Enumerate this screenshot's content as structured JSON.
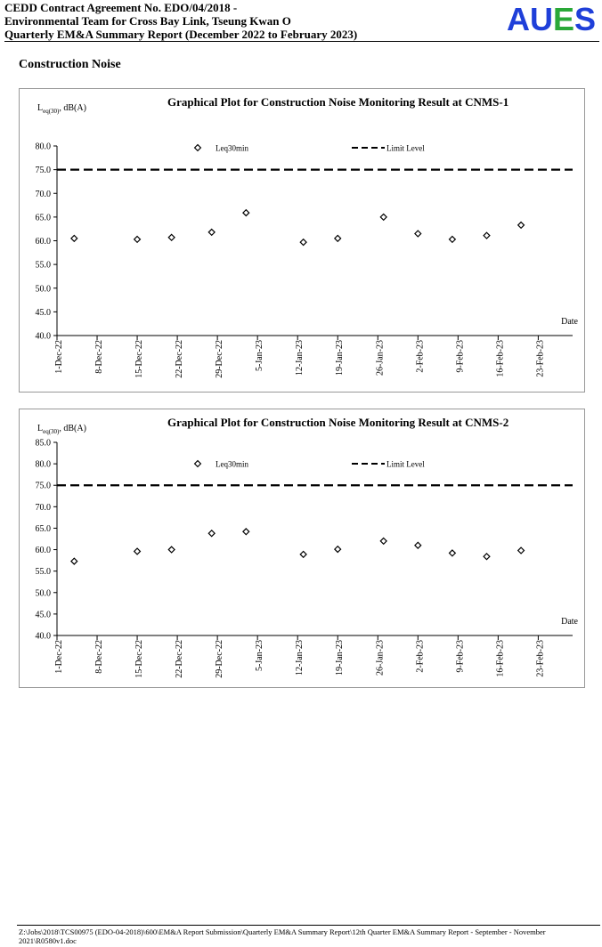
{
  "header": {
    "lines": [
      "CEDD Contract Agreement No. EDO/04/2018 -",
      "Environmental Team for Cross Bay Link, Tseung Kwan O",
      "Quarterly EM&A Summary Report (December 2022 to February 2023)"
    ],
    "logo_letters": [
      "A",
      "U",
      "E",
      "S"
    ],
    "logo_colors": [
      "#1f3fd9",
      "#1f3fd9",
      "#2aa838",
      "#1f3fd9"
    ]
  },
  "section_title": "Construction Noise",
  "chart_data": [
    {
      "type": "scatter",
      "title": "Graphical Plot for Construction Noise Monitoring Result at CNMS-1",
      "ylabel_main": "L",
      "ylabel_sub": "eq(30)",
      "ylabel_rest": ", dB(A)",
      "xlabel": "Date",
      "ylim": [
        40,
        80
      ],
      "yticks": [
        "40.0",
        "45.0",
        "50.0",
        "55.0",
        "60.0",
        "65.0",
        "70.0",
        "75.0",
        "80.0"
      ],
      "xticks": [
        "1-Dec-22",
        "8-Dec-22",
        "15-Dec-22",
        "22-Dec-22",
        "29-Dec-22",
        "5-Jan-23",
        "12-Jan-23",
        "19-Jan-23",
        "26-Jan-23",
        "2-Feb-23",
        "9-Feb-23",
        "16-Feb-23",
        "23-Feb-23"
      ],
      "xrange_days": [
        0,
        90
      ],
      "series": [
        {
          "name": "Leq30min",
          "marker": "diamond",
          "x": [
            "2022-12-04",
            "2022-12-15",
            "2022-12-21",
            "2022-12-28",
            "2023-01-03",
            "2023-01-13",
            "2023-01-19",
            "2023-01-27",
            "2023-02-02",
            "2023-02-08",
            "2023-02-14",
            "2023-02-20"
          ],
          "x_days": [
            3,
            14,
            20,
            27,
            33,
            43,
            49,
            57,
            63,
            69,
            75,
            81
          ],
          "values": [
            60.5,
            60.3,
            60.7,
            61.8,
            65.9,
            59.7,
            60.5,
            65.0,
            61.5,
            60.3,
            61.1,
            63.3
          ]
        }
      ],
      "limit": {
        "name": "Limit Level",
        "value": 75
      }
    },
    {
      "type": "scatter",
      "title": "Graphical Plot for Construction Noise Monitoring Result at CNMS-2",
      "ylabel_main": "L",
      "ylabel_sub": "eq(30)",
      "ylabel_rest": ", dB(A)",
      "xlabel": "Date",
      "ylim": [
        40,
        85
      ],
      "yticks": [
        "40.0",
        "45.0",
        "50.0",
        "55.0",
        "60.0",
        "65.0",
        "70.0",
        "75.0",
        "80.0",
        "85.0"
      ],
      "xticks": [
        "1-Dec-22",
        "8-Dec-22",
        "15-Dec-22",
        "22-Dec-22",
        "29-Dec-22",
        "5-Jan-23",
        "12-Jan-23",
        "19-Jan-23",
        "26-Jan-23",
        "2-Feb-23",
        "9-Feb-23",
        "16-Feb-23",
        "23-Feb-23"
      ],
      "xrange_days": [
        0,
        90
      ],
      "series": [
        {
          "name": "Leq30min",
          "marker": "diamond",
          "x": [
            "2022-12-04",
            "2022-12-15",
            "2022-12-21",
            "2022-12-28",
            "2023-01-03",
            "2023-01-13",
            "2023-01-19",
            "2023-01-27",
            "2023-02-02",
            "2023-02-08",
            "2023-02-14",
            "2023-02-20"
          ],
          "x_days": [
            3,
            14,
            20,
            27,
            33,
            43,
            49,
            57,
            63,
            69,
            75,
            81
          ],
          "values": [
            57.3,
            59.6,
            60.0,
            63.8,
            64.2,
            58.9,
            60.1,
            62.0,
            61.0,
            59.2,
            58.4,
            59.8
          ]
        }
      ],
      "limit": {
        "name": "Limit Level",
        "value": 75
      }
    }
  ],
  "footer": "Z:\\Jobs\\2018\\TCS00975 (EDO-04-2018)\\600\\EM&A Report Submission\\Quarterly EM&A Summary Report\\12th Quarter EM&A Summary Report - September - November 2021\\R0580v1.doc"
}
